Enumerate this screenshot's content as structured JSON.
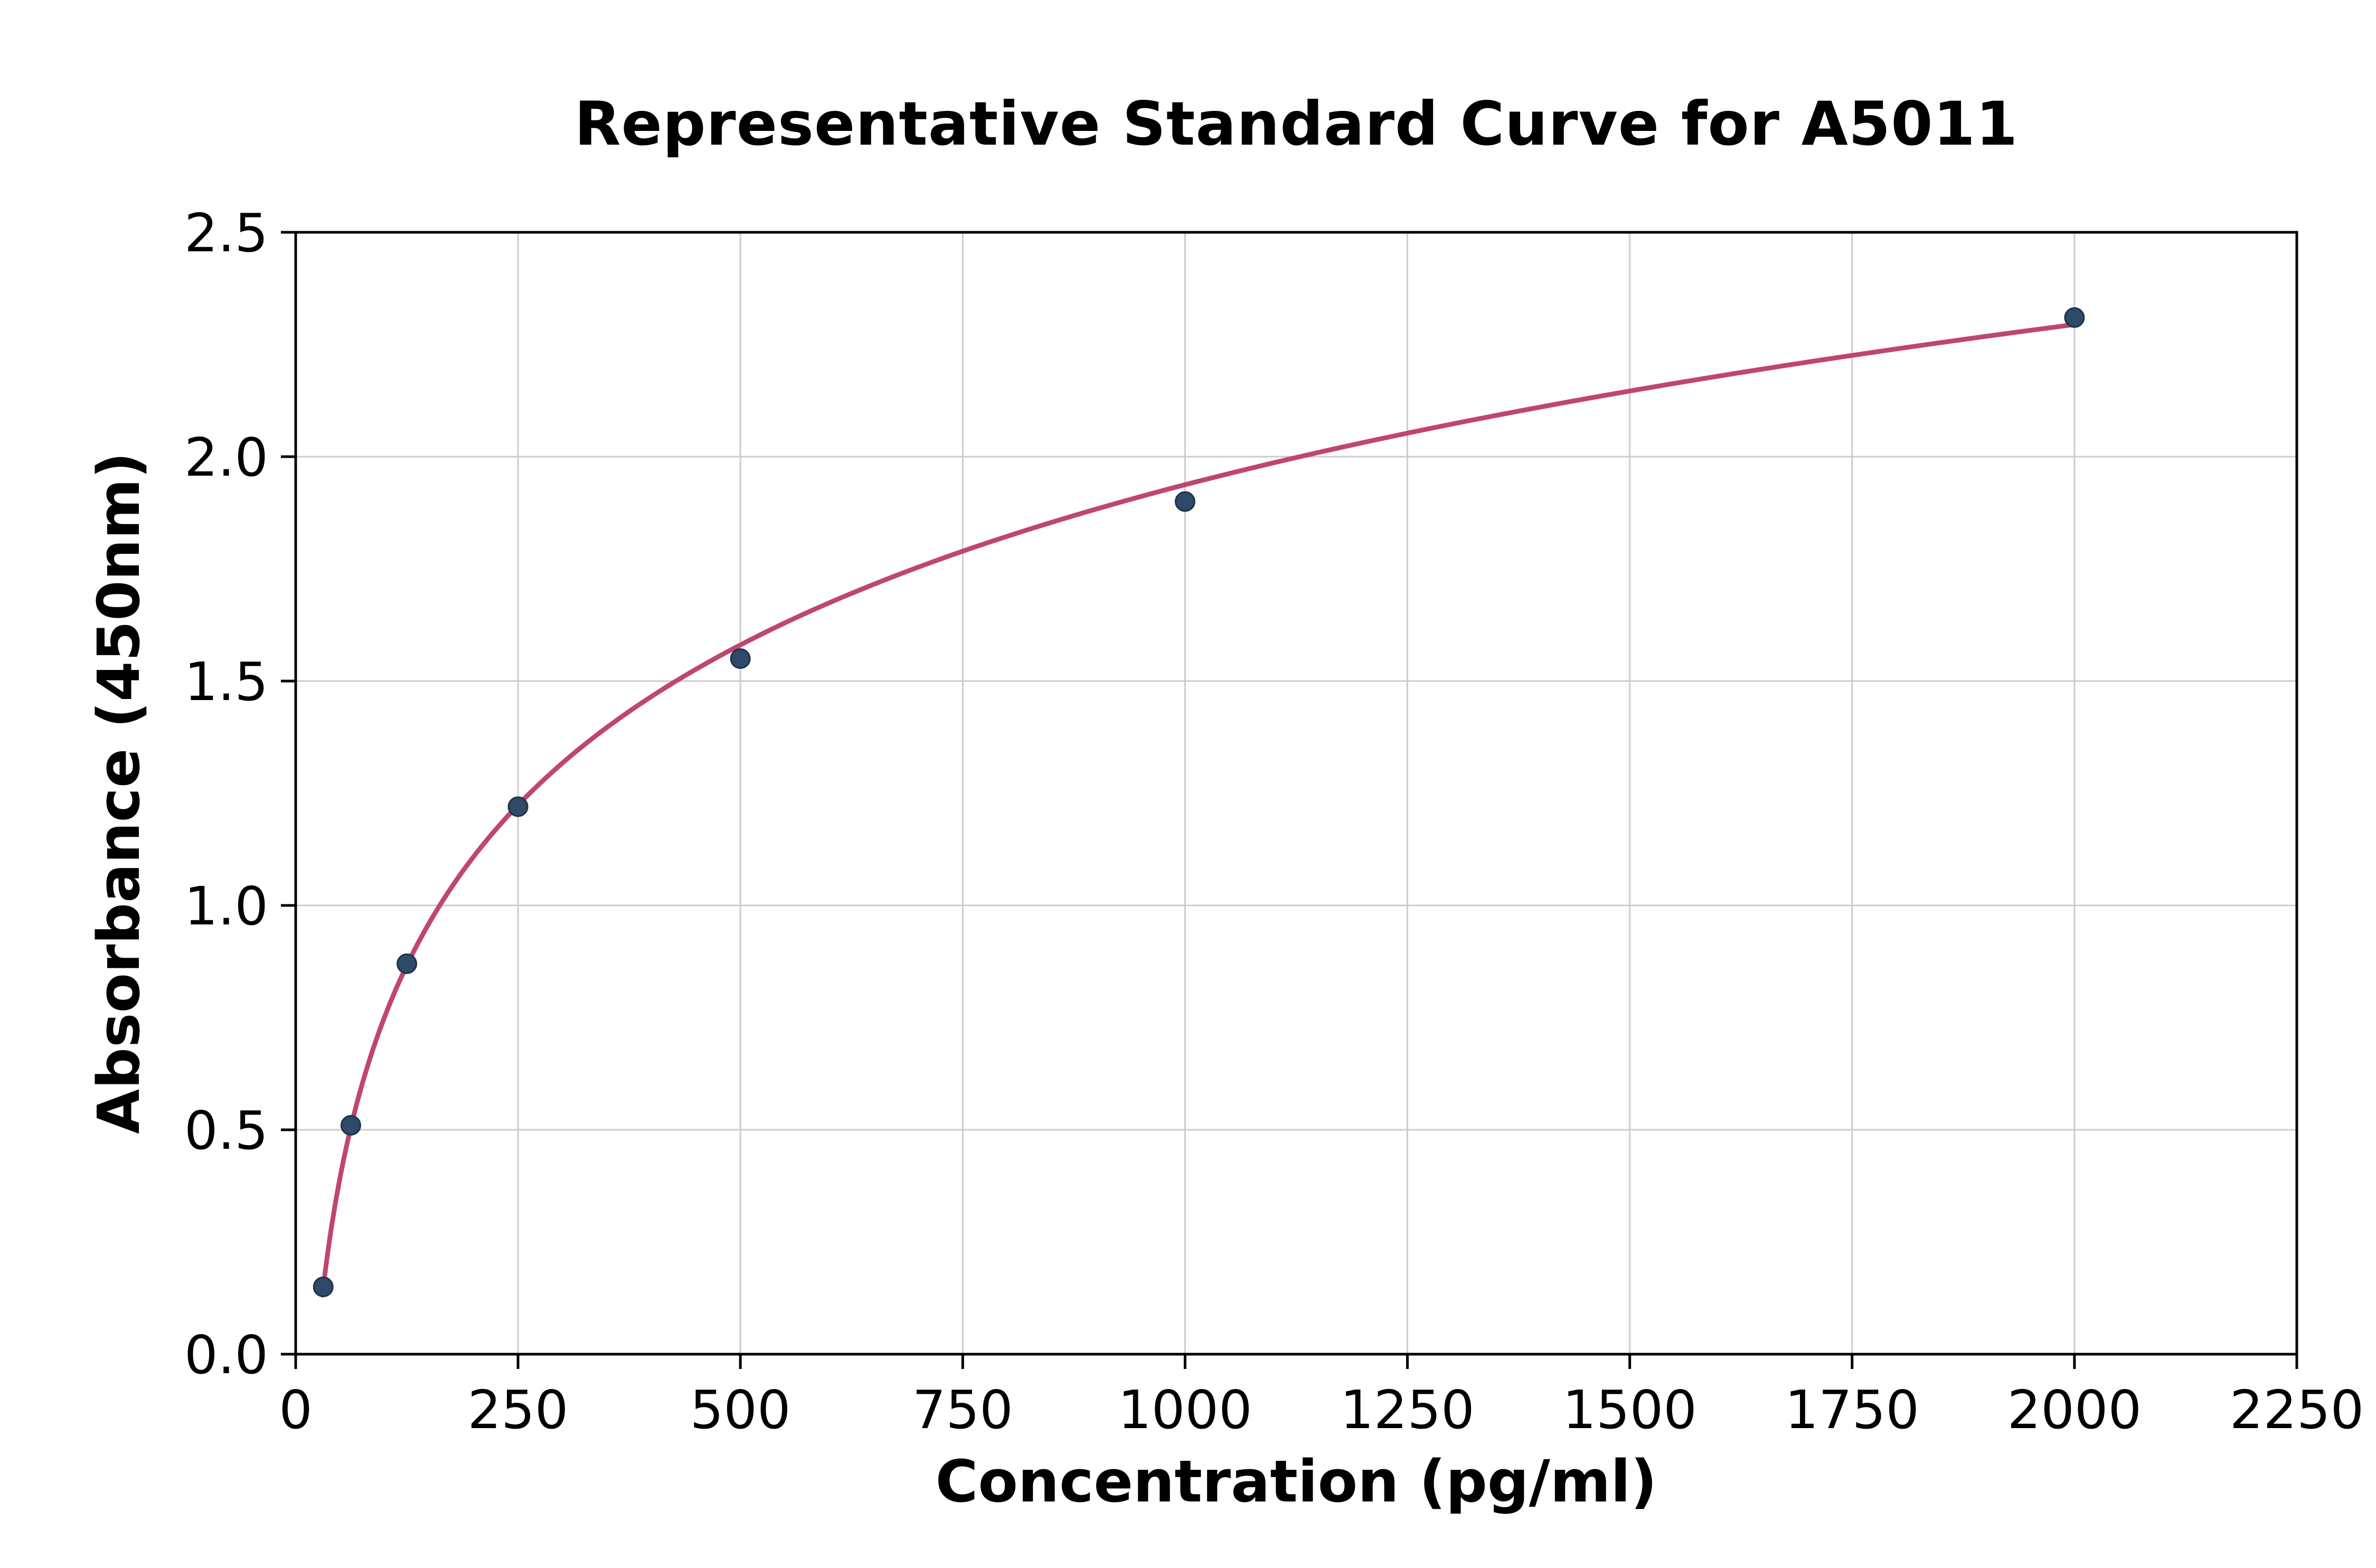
{
  "page": {
    "background": "#ffffff"
  },
  "chart_data": {
    "type": "scatter",
    "title": "Representative Standard Curve for A5011",
    "xlabel": "Concentration (pg/ml)",
    "ylabel": "Absorbance (450nm)",
    "points": [
      [
        31,
        0.15
      ],
      [
        62,
        0.51
      ],
      [
        125,
        0.87
      ],
      [
        250,
        1.22
      ],
      [
        500,
        1.55
      ],
      [
        1000,
        1.9
      ],
      [
        2000,
        2.31
      ]
    ],
    "fit_curve": {
      "type": "logarithmic",
      "a": 0.515,
      "b": -1.62,
      "x_start": 30,
      "x_end": 2000
    },
    "xlim": [
      0,
      2250
    ],
    "ylim": [
      0,
      2.5
    ],
    "x_ticks": [
      0,
      250,
      500,
      750,
      1000,
      1250,
      1500,
      1750,
      2000,
      2250
    ],
    "x_tick_labels": [
      "0",
      "250",
      "500",
      "750",
      "1000",
      "1250",
      "1500",
      "1750",
      "2000",
      "2250"
    ],
    "y_ticks": [
      0,
      0.5,
      1.0,
      1.5,
      2.0,
      2.5
    ],
    "y_tick_labels": [
      "0.0",
      "0.5",
      "1.0",
      "1.5",
      "2.0",
      "2.5"
    ],
    "grid": true,
    "legend": null,
    "colors": {
      "curve": "#bf4670",
      "point": "#2e4a68",
      "point_edge": "#1d3347",
      "grid": "#cccccc",
      "spine": "#000000",
      "text": "#000000"
    }
  }
}
